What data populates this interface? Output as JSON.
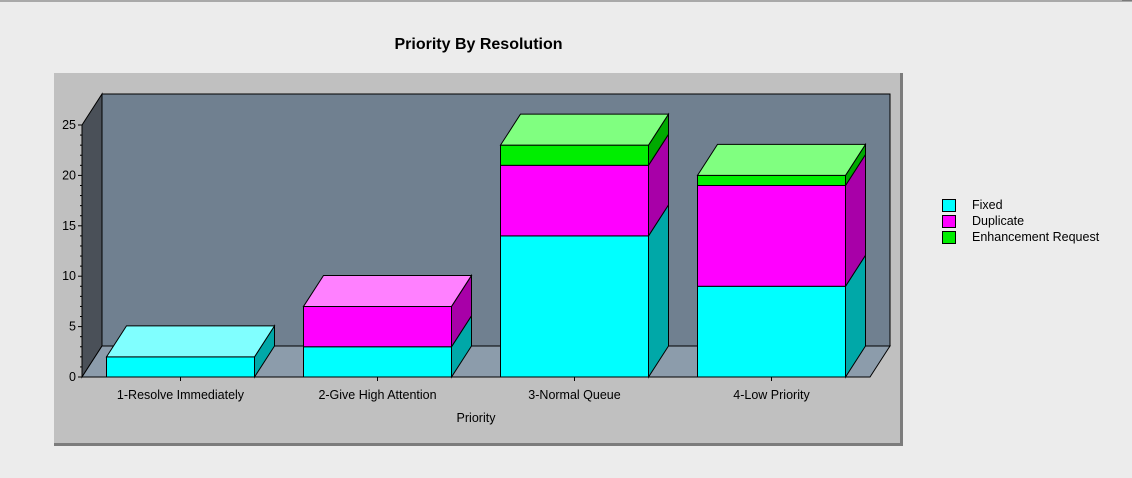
{
  "chart_data": {
    "type": "bar",
    "stacked": true,
    "three_d": true,
    "title": "Priority By Resolution",
    "xlabel": "Priority",
    "ylabel": "",
    "categories": [
      "1-Resolve Immediately",
      "2-Give High Attention",
      "3-Normal Queue",
      "4-Low Priority"
    ],
    "series": [
      {
        "name": "Fixed",
        "values": [
          2,
          3,
          14,
          9
        ],
        "color": "#00ffff",
        "side_color": "#00a8a8",
        "top_color": "#80ffff"
      },
      {
        "name": "Duplicate",
        "values": [
          0,
          4,
          7,
          10
        ],
        "color": "#ff00ff",
        "side_color": "#a800a8",
        "top_color": "#ff80ff"
      },
      {
        "name": "Enhancement Request",
        "values": [
          0,
          0,
          2,
          1
        ],
        "color": "#00ee00",
        "side_color": "#00aa00",
        "top_color": "#80ff80"
      }
    ],
    "ylim": [
      0,
      25
    ],
    "yticks": [
      0,
      5,
      10,
      15,
      20,
      25
    ],
    "legend_position": "right",
    "grid": false,
    "colors": {
      "wall": "#708090",
      "floor": "#8c9cab",
      "side_wall": "#4a5058",
      "frame": "#c0c0c0"
    }
  }
}
